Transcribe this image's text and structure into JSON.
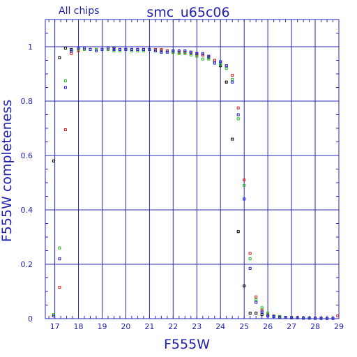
{
  "chart_data": {
    "type": "scatter",
    "title": "smc_u65c06",
    "subtitle": "All chips",
    "xlabel": "F555W",
    "ylabel": "F555W completeness",
    "xlim": [
      16.6,
      29.0
    ],
    "ylim": [
      0,
      1.1
    ],
    "xticks": [
      17,
      18,
      19,
      20,
      21,
      22,
      23,
      24,
      25,
      26,
      27,
      28,
      29
    ],
    "yticks": [
      0,
      0.2,
      0.4,
      0.6,
      0.8,
      1
    ],
    "ytick_labels": [
      "0",
      "0.2",
      "0.4",
      "0.6",
      "0.8",
      "1"
    ],
    "grid": true,
    "marker": "open-square",
    "series": [
      {
        "color": "#000000",
        "points": [
          [
            16.95,
            0.58
          ],
          [
            17.2,
            0.96
          ],
          [
            17.45,
            0.995
          ],
          [
            17.7,
            0.99
          ],
          [
            18.0,
            0.99
          ],
          [
            18.25,
            0.995
          ],
          [
            18.5,
            0.99
          ],
          [
            18.75,
            0.99
          ],
          [
            19.0,
            0.99
          ],
          [
            19.25,
            0.99
          ],
          [
            19.5,
            0.995
          ],
          [
            19.75,
            0.99
          ],
          [
            20.0,
            0.99
          ],
          [
            20.25,
            0.99
          ],
          [
            20.5,
            0.99
          ],
          [
            20.75,
            0.99
          ],
          [
            21.0,
            0.99
          ],
          [
            21.25,
            0.985
          ],
          [
            21.5,
            0.985
          ],
          [
            21.75,
            0.985
          ],
          [
            22.0,
            0.98
          ],
          [
            22.25,
            0.98
          ],
          [
            22.5,
            0.98
          ],
          [
            22.75,
            0.98
          ],
          [
            23.0,
            0.975
          ],
          [
            23.25,
            0.97
          ],
          [
            23.5,
            0.96
          ],
          [
            23.75,
            0.95
          ],
          [
            24.0,
            0.93
          ],
          [
            24.25,
            0.87
          ],
          [
            24.5,
            0.66
          ],
          [
            24.75,
            0.32
          ],
          [
            25.0,
            0.12
          ],
          [
            25.25,
            0.02
          ],
          [
            25.5,
            0.02
          ],
          [
            25.75,
            0.015
          ],
          [
            26.0,
            0.01
          ],
          [
            26.25,
            0.008
          ],
          [
            26.5,
            0.005
          ],
          [
            26.75,
            0.005
          ],
          [
            27.0,
            0.003
          ],
          [
            27.25,
            0.003
          ],
          [
            27.5,
            0.002
          ],
          [
            27.75,
            0.002
          ],
          [
            28.0,
            0.002
          ],
          [
            28.25,
            0.001
          ],
          [
            28.5,
            0.001
          ],
          [
            28.75,
            0.001
          ]
        ]
      },
      {
        "color": "#dd2222",
        "points": [
          [
            16.95,
            0.01
          ],
          [
            17.2,
            0.115
          ],
          [
            17.45,
            0.695
          ],
          [
            17.7,
            0.975
          ],
          [
            18.0,
            0.985
          ],
          [
            18.25,
            0.99
          ],
          [
            18.5,
            0.99
          ],
          [
            18.75,
            0.99
          ],
          [
            19.0,
            0.99
          ],
          [
            19.25,
            0.99
          ],
          [
            19.5,
            0.99
          ],
          [
            19.75,
            0.99
          ],
          [
            20.0,
            0.99
          ],
          [
            20.25,
            0.99
          ],
          [
            20.5,
            0.99
          ],
          [
            20.75,
            0.99
          ],
          [
            21.0,
            0.99
          ],
          [
            21.25,
            0.99
          ],
          [
            21.5,
            0.99
          ],
          [
            21.75,
            0.985
          ],
          [
            22.0,
            0.985
          ],
          [
            22.25,
            0.98
          ],
          [
            22.5,
            0.98
          ],
          [
            22.75,
            0.975
          ],
          [
            23.0,
            0.97
          ],
          [
            23.25,
            0.97
          ],
          [
            23.5,
            0.965
          ],
          [
            23.75,
            0.95
          ],
          [
            24.0,
            0.945
          ],
          [
            24.25,
            0.93
          ],
          [
            24.5,
            0.895
          ],
          [
            24.75,
            0.775
          ],
          [
            25.0,
            0.51
          ],
          [
            25.25,
            0.24
          ],
          [
            25.5,
            0.08
          ],
          [
            25.75,
            0.03
          ],
          [
            26.0,
            0.015
          ],
          [
            26.25,
            0.01
          ],
          [
            26.5,
            0.008
          ],
          [
            26.75,
            0.005
          ],
          [
            27.0,
            0.005
          ],
          [
            27.25,
            0.004
          ],
          [
            27.5,
            0.003
          ],
          [
            27.75,
            0.002
          ],
          [
            28.0,
            0.002
          ],
          [
            28.25,
            0.002
          ],
          [
            28.5,
            0.001
          ],
          [
            28.75,
            0.001
          ],
          [
            28.95,
            0.01
          ]
        ]
      },
      {
        "color": "#22bb22",
        "points": [
          [
            16.95,
            0.015
          ],
          [
            17.2,
            0.26
          ],
          [
            17.45,
            0.875
          ],
          [
            17.7,
            0.985
          ],
          [
            18.0,
            0.99
          ],
          [
            18.25,
            0.99
          ],
          [
            18.5,
            0.99
          ],
          [
            18.75,
            0.99
          ],
          [
            19.0,
            0.99
          ],
          [
            19.25,
            0.99
          ],
          [
            19.5,
            0.985
          ],
          [
            19.75,
            0.985
          ],
          [
            20.0,
            0.99
          ],
          [
            20.25,
            0.985
          ],
          [
            20.5,
            0.985
          ],
          [
            20.75,
            0.985
          ],
          [
            21.0,
            0.99
          ],
          [
            21.25,
            0.985
          ],
          [
            21.5,
            0.98
          ],
          [
            21.75,
            0.98
          ],
          [
            22.0,
            0.98
          ],
          [
            22.25,
            0.975
          ],
          [
            22.5,
            0.975
          ],
          [
            22.75,
            0.97
          ],
          [
            23.0,
            0.965
          ],
          [
            23.25,
            0.955
          ],
          [
            23.5,
            0.955
          ],
          [
            23.75,
            0.94
          ],
          [
            24.0,
            0.935
          ],
          [
            24.25,
            0.92
          ],
          [
            24.5,
            0.88
          ],
          [
            24.75,
            0.735
          ],
          [
            25.0,
            0.49
          ],
          [
            25.25,
            0.22
          ],
          [
            25.5,
            0.07
          ],
          [
            25.75,
            0.04
          ],
          [
            26.0,
            0.02
          ],
          [
            26.25,
            0.01
          ],
          [
            26.5,
            0.008
          ],
          [
            26.75,
            0.005
          ],
          [
            27.0,
            0.004
          ],
          [
            27.25,
            0.003
          ],
          [
            27.5,
            0.002
          ],
          [
            27.75,
            0.002
          ],
          [
            28.0,
            0.001
          ],
          [
            28.25,
            0.001
          ],
          [
            28.5,
            0.001
          ],
          [
            28.75,
            0.001
          ]
        ]
      },
      {
        "color": "#2222dd",
        "points": [
          [
            16.95,
            0.01
          ],
          [
            17.2,
            0.22
          ],
          [
            17.45,
            0.85
          ],
          [
            17.7,
            0.985
          ],
          [
            18.0,
            0.995
          ],
          [
            18.25,
            0.995
          ],
          [
            18.5,
            0.99
          ],
          [
            18.75,
            0.985
          ],
          [
            19.0,
            0.99
          ],
          [
            19.25,
            0.995
          ],
          [
            19.5,
            0.99
          ],
          [
            19.75,
            0.99
          ],
          [
            20.0,
            0.99
          ],
          [
            20.25,
            0.99
          ],
          [
            20.5,
            0.99
          ],
          [
            20.75,
            0.99
          ],
          [
            21.0,
            0.99
          ],
          [
            21.25,
            0.985
          ],
          [
            21.5,
            0.98
          ],
          [
            21.75,
            0.98
          ],
          [
            22.0,
            0.985
          ],
          [
            22.25,
            0.985
          ],
          [
            22.5,
            0.985
          ],
          [
            22.75,
            0.98
          ],
          [
            23.0,
            0.975
          ],
          [
            23.25,
            0.975
          ],
          [
            23.5,
            0.965
          ],
          [
            23.75,
            0.94
          ],
          [
            24.0,
            0.945
          ],
          [
            24.25,
            0.93
          ],
          [
            24.5,
            0.87
          ],
          [
            24.75,
            0.75
          ],
          [
            25.0,
            0.44
          ],
          [
            25.25,
            0.185
          ],
          [
            25.5,
            0.06
          ],
          [
            25.75,
            0.025
          ],
          [
            26.0,
            0.01
          ],
          [
            26.25,
            0.008
          ],
          [
            26.5,
            0.005
          ],
          [
            26.75,
            0.004
          ],
          [
            27.0,
            0.003
          ],
          [
            27.25,
            0.003
          ],
          [
            27.5,
            0.002
          ],
          [
            27.75,
            0.002
          ],
          [
            28.0,
            0.001
          ],
          [
            28.25,
            0.001
          ],
          [
            28.5,
            0.001
          ],
          [
            28.75,
            0.001
          ]
        ]
      }
    ]
  }
}
